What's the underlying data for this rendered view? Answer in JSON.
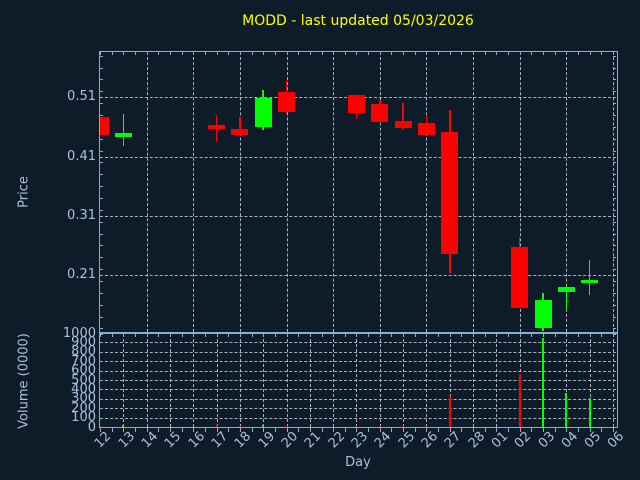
{
  "chart_data": {
    "type": "candlestick",
    "title": "MODD - last updated 05/03/2026",
    "xlabel": "Day",
    "ylabel_price": "Price",
    "ylabel_volume": "Volume (0000)",
    "grid": true,
    "categories": [
      "12",
      "13",
      "14",
      "15",
      "16",
      "17",
      "18",
      "19",
      "20",
      "21",
      "22",
      "23",
      "24",
      "25",
      "26",
      "27",
      "28",
      "01",
      "02",
      "03",
      "04",
      "05",
      "06"
    ],
    "price_axis": {
      "ticks": [
        0.51,
        0.41,
        0.31,
        0.21
      ],
      "tick_labels": [
        "0.51",
        "0.41",
        "0.31",
        "0.21"
      ],
      "ylim": [
        0.114,
        0.588
      ],
      "minor_step": 0.02
    },
    "volume_axis": {
      "ticks": [
        1000,
        900,
        800,
        700,
        600,
        500,
        400,
        300,
        200,
        100,
        0
      ],
      "tick_labels": [
        "1000",
        "900",
        "800",
        "700",
        "600",
        "500",
        "400",
        "300",
        "200",
        "100",
        "0"
      ],
      "ylim": [
        0,
        1000
      ]
    },
    "candles": [
      {
        "day": "12",
        "open": 0.477,
        "high": 0.477,
        "low": 0.446,
        "close": 0.446,
        "volume": 8
      },
      {
        "day": "13",
        "open": 0.443,
        "high": 0.481,
        "low": 0.427,
        "close": 0.45,
        "volume": 18
      },
      {
        "day": "17",
        "open": 0.463,
        "high": 0.48,
        "low": 0.435,
        "close": 0.456,
        "volume": 18
      },
      {
        "day": "18",
        "open": 0.456,
        "high": 0.477,
        "low": 0.446,
        "close": 0.446,
        "volume": 12
      },
      {
        "day": "19",
        "open": 0.46,
        "high": 0.522,
        "low": 0.454,
        "close": 0.508,
        "volume": 25
      },
      {
        "day": "20",
        "open": 0.519,
        "high": 0.539,
        "low": 0.481,
        "close": 0.485,
        "volume": 15
      },
      {
        "day": "23",
        "open": 0.513,
        "high": 0.513,
        "low": 0.474,
        "close": 0.483,
        "volume": 10
      },
      {
        "day": "24",
        "open": 0.499,
        "high": 0.505,
        "low": 0.468,
        "close": 0.468,
        "volume": 10
      },
      {
        "day": "25",
        "open": 0.47,
        "high": 0.5,
        "low": 0.456,
        "close": 0.458,
        "volume": 8
      },
      {
        "day": "26",
        "open": 0.466,
        "high": 0.48,
        "low": 0.447,
        "close": 0.447,
        "volume": 6
      },
      {
        "day": "27",
        "open": 0.452,
        "high": 0.488,
        "low": 0.214,
        "close": 0.245,
        "volume": 330
      },
      {
        "day": "02",
        "open": 0.258,
        "high": 0.275,
        "low": 0.155,
        "close": 0.155,
        "volume": 560
      },
      {
        "day": "03",
        "open": 0.12,
        "high": 0.179,
        "low": 0.116,
        "close": 0.168,
        "volume": 950
      },
      {
        "day": "04",
        "open": 0.182,
        "high": 0.193,
        "low": 0.151,
        "close": 0.19,
        "volume": 360
      },
      {
        "day": "05",
        "open": 0.196,
        "high": 0.235,
        "low": 0.176,
        "close": 0.201,
        "volume": 310
      }
    ],
    "colors": {
      "up": "#00ff00",
      "down": "#ff0000",
      "background": "#0e1b29",
      "axis": "#84aed4",
      "tick_text": "#a8c2dc",
      "title": "#ffff00",
      "grid": "#c4ccd4"
    }
  }
}
